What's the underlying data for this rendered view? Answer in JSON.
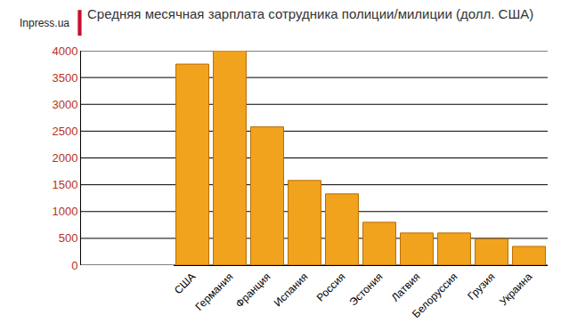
{
  "chart_data": {
    "type": "bar",
    "title": "Средняя месячная зарплата сотрудника полиции/милиции (долл. США)",
    "annotations": [
      {
        "text": "Inpress.ua"
      }
    ],
    "categories": [
      "США",
      "Германия",
      "Франция",
      "Испания",
      "Россия",
      "Эстония",
      "Латвия",
      "Белоруссия",
      "Грузия",
      "Украина"
    ],
    "values": [
      3750,
      4000,
      2580,
      1580,
      1330,
      800,
      600,
      600,
      490,
      350
    ],
    "color": "#f2a31e",
    "ylim": [
      0,
      4000
    ],
    "yticks": [
      0,
      500,
      1000,
      1500,
      2000,
      2500,
      3000,
      3500,
      4000
    ],
    "grid": true
  }
}
